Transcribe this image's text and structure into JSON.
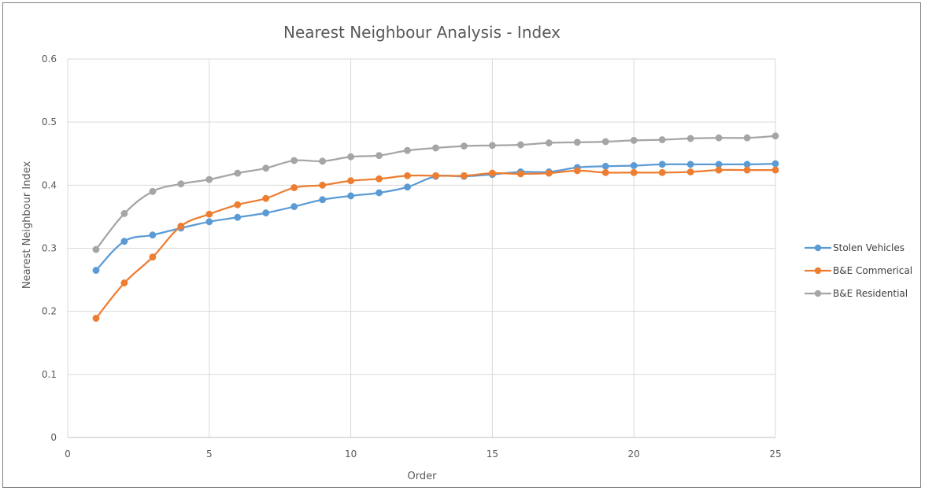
{
  "chart_data": {
    "type": "line",
    "title": "Nearest Neighbour Analysis - Index",
    "xlabel": "Order",
    "ylabel": "Nearest Neighbour Index",
    "xlim": [
      0,
      25
    ],
    "ylim": [
      0,
      0.6
    ],
    "x_ticks": [
      0,
      5,
      10,
      15,
      20,
      25
    ],
    "y_ticks": [
      0,
      0.1,
      0.2,
      0.3,
      0.4,
      0.5,
      0.6
    ],
    "x_tick_labels": [
      "0",
      "5",
      "10",
      "15",
      "20",
      "25"
    ],
    "y_tick_labels": [
      "0",
      "0.1",
      "0.2",
      "0.3",
      "0.4",
      "0.5",
      "0.6"
    ],
    "grid": true,
    "legend_position": "right",
    "x": [
      1,
      2,
      3,
      4,
      5,
      6,
      7,
      8,
      9,
      10,
      11,
      12,
      13,
      14,
      15,
      16,
      17,
      18,
      19,
      20,
      21,
      22,
      23,
      24,
      25
    ],
    "series": [
      {
        "name": "Stolen Vehicles",
        "color": "#5b9bd5",
        "values": [
          0.265,
          0.311,
          0.321,
          0.332,
          0.342,
          0.349,
          0.356,
          0.366,
          0.377,
          0.383,
          0.388,
          0.397,
          0.414,
          0.414,
          0.417,
          0.421,
          0.421,
          0.428,
          0.43,
          0.431,
          0.433,
          0.433,
          0.433,
          0.433,
          0.434
        ]
      },
      {
        "name": "B&E Commerical",
        "color": "#ed7d31",
        "values": [
          0.189,
          0.245,
          0.286,
          0.335,
          0.354,
          0.369,
          0.379,
          0.396,
          0.4,
          0.407,
          0.41,
          0.415,
          0.415,
          0.415,
          0.419,
          0.418,
          0.419,
          0.423,
          0.42,
          0.42,
          0.42,
          0.421,
          0.424,
          0.424,
          0.424
        ]
      },
      {
        "name": "B&E Residential",
        "color": "#a5a5a5",
        "values": [
          0.298,
          0.355,
          0.39,
          0.402,
          0.409,
          0.419,
          0.427,
          0.439,
          0.438,
          0.445,
          0.447,
          0.455,
          0.459,
          0.462,
          0.463,
          0.464,
          0.467,
          0.468,
          0.469,
          0.471,
          0.472,
          0.474,
          0.475,
          0.475,
          0.478
        ]
      }
    ]
  }
}
